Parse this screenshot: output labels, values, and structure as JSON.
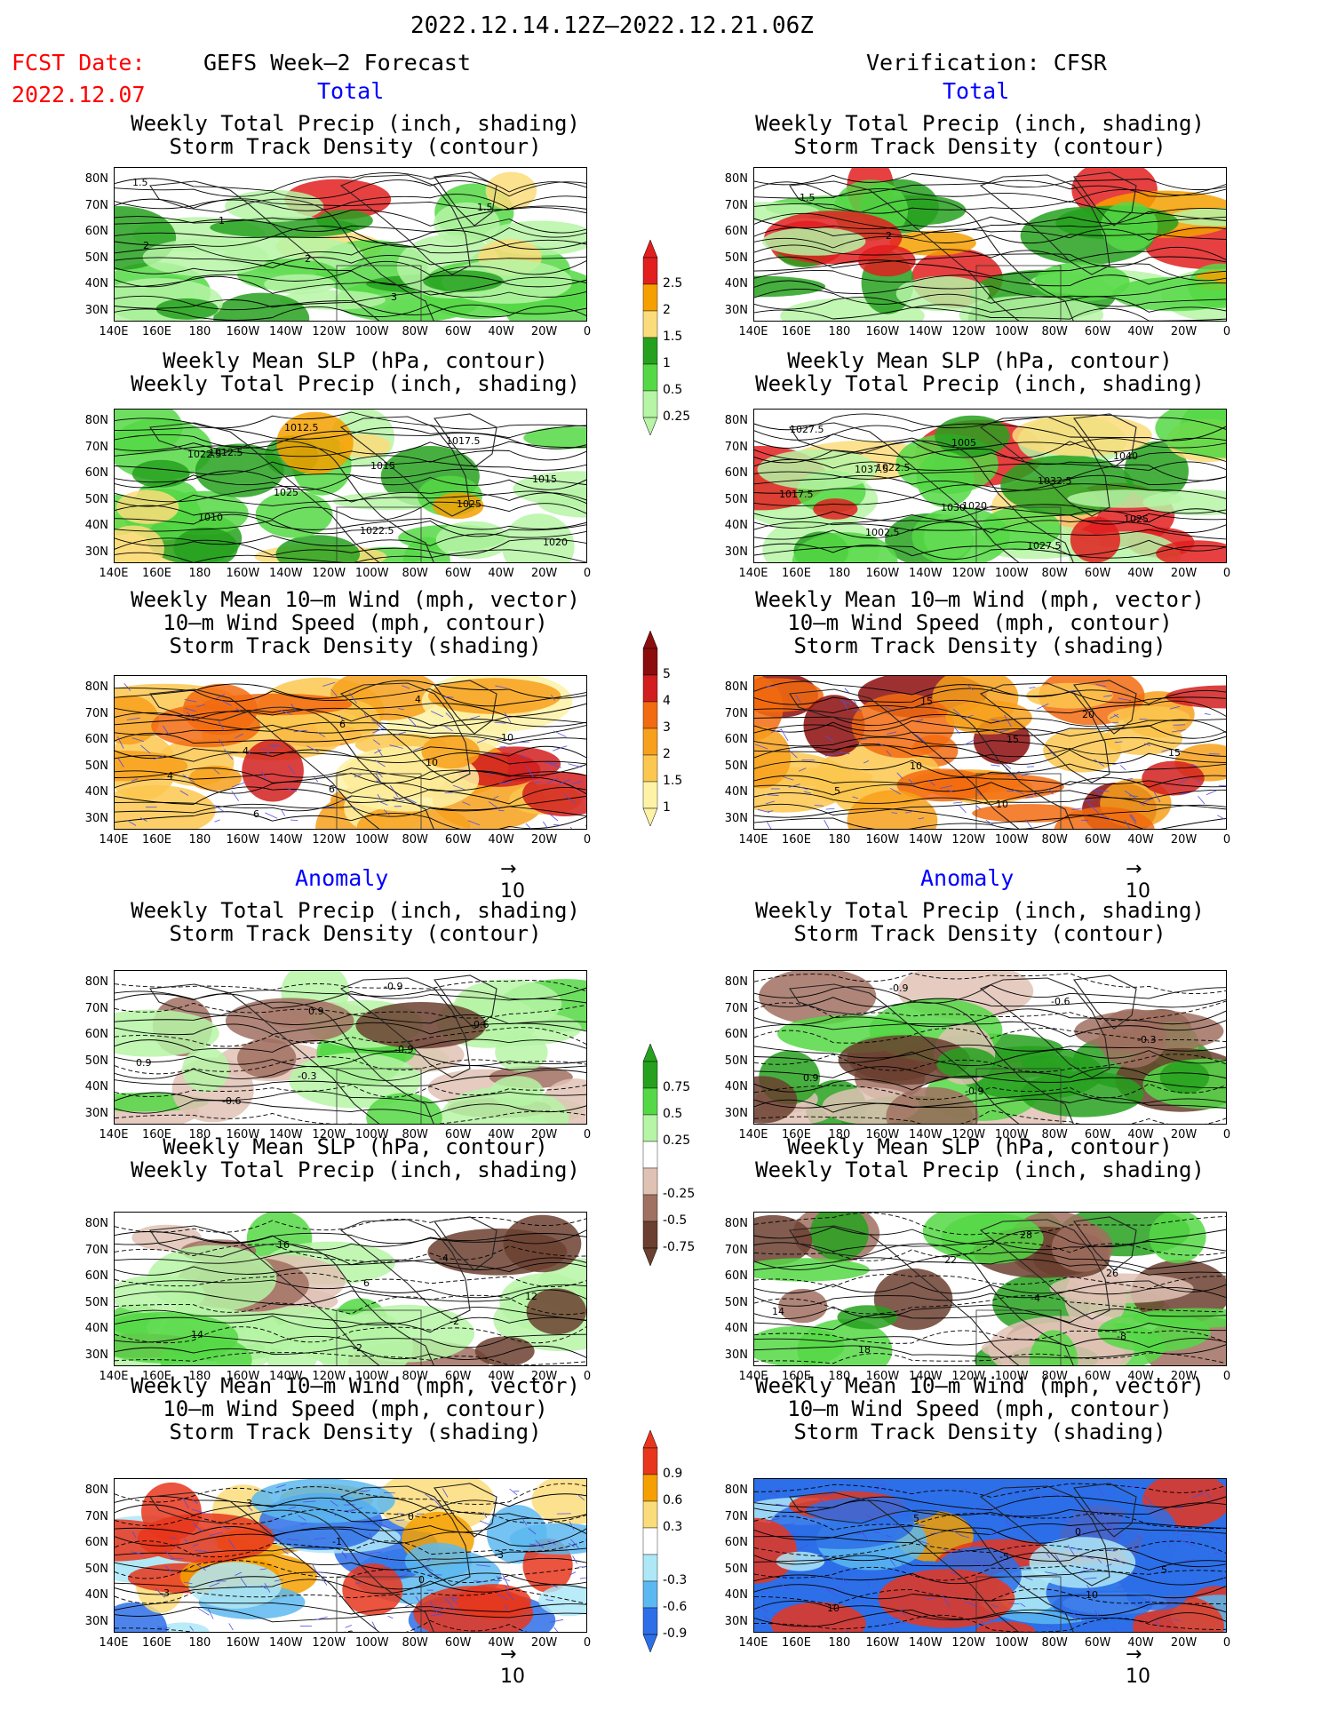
{
  "header": {
    "period": "2022.12.14.12Z—2022.12.21.06Z",
    "fcst_label": "FCST Date:",
    "fcst_date": "2022.12.07",
    "left_title": "GEFS Week—2 Forecast",
    "right_title": "Verification: CFSR",
    "total_label": "Total",
    "anomaly_label": "Anomaly"
  },
  "panel_titles": {
    "precip_track": "Weekly Total Precip (inch, shading)\nStorm Track Density (contour)",
    "slp_precip": "Weekly Mean SLP (hPa, contour)\nWeekly Total Precip (inch, shading)",
    "wind_track": "Weekly Mean 10—m Wind (mph, vector)\n10—m Wind Speed (mph, contour)\nStorm Track Density (shading)"
  },
  "axes": {
    "lat_ticks": [
      "80N",
      "70N",
      "60N",
      "50N",
      "40N",
      "30N"
    ],
    "lon_ticks": [
      "140E",
      "160E",
      "180",
      "160W",
      "140W",
      "120W",
      "100W",
      "80W",
      "60W",
      "40W",
      "20W",
      "0"
    ]
  },
  "vector_ref": {
    "label": "10"
  },
  "colorbars": {
    "precip_total": {
      "labels": [
        "2.5",
        "2",
        "1.5",
        "1",
        "0.5",
        "0.25"
      ],
      "colors": [
        "#e21f1f",
        "#f5a000",
        "#fbdc7a",
        "#26a11e",
        "#55d845",
        "#b6f4a6"
      ]
    },
    "storm_total": {
      "labels": [
        "5",
        "4",
        "3",
        "2",
        "1.5",
        "1"
      ],
      "colors": [
        "#8c0d0d",
        "#d21e1e",
        "#f26b10",
        "#f7a01b",
        "#fbc74f",
        "#fdf2a6"
      ]
    },
    "precip_anom": {
      "labels": [
        "0.75",
        "0.5",
        "0.25",
        "-0.25",
        "-0.5",
        "-0.75"
      ],
      "colors": [
        "#26a11e",
        "#55d845",
        "#b6f4a6",
        "#ffffff",
        "#e0c2b5",
        "#a07060",
        "#6b4030"
      ]
    },
    "wind_anom": {
      "labels": [
        "0.9",
        "0.6",
        "0.3",
        "-0.3",
        "-0.6",
        "-0.9"
      ],
      "colors": [
        "#e8361c",
        "#f5a000",
        "#fbdc7a",
        "#ffffff",
        "#aee8f7",
        "#5cb8f0",
        "#2d6fe8"
      ]
    }
  },
  "panels": [
    {
      "id": "fc-total-precip",
      "labels": [
        "1.5",
        "1",
        "2",
        "3",
        "1.5",
        "2"
      ],
      "scheme": "precip"
    },
    {
      "id": "vf-total-precip",
      "labels": [
        "1.5",
        "2"
      ],
      "scheme": "precip_heavy"
    },
    {
      "id": "fc-total-slp",
      "labels": [
        "1022.5",
        "1025",
        "1022.5",
        "1017.5",
        "1015",
        "1010",
        "1012.5",
        "1015",
        "1025",
        "1020",
        "1012.5"
      ],
      "scheme": "precip"
    },
    {
      "id": "vf-total-slp",
      "labels": [
        "1037.5",
        "1030",
        "1027.5",
        "1040",
        "1017.5",
        "1002.5",
        "1005",
        "1032.5",
        "1025",
        "1027.5",
        "1022.5",
        "1020"
      ],
      "scheme": "precip_heavy"
    },
    {
      "id": "fc-total-wind",
      "labels": [
        "4",
        "6",
        "4",
        "10",
        "4",
        "6",
        "6",
        "10"
      ],
      "scheme": "storm"
    },
    {
      "id": "vf-total-wind",
      "labels": [
        "10",
        "10",
        "20",
        "15",
        "5",
        "15",
        "15"
      ],
      "scheme": "storm_verif"
    },
    {
      "id": "fc-anom-precip",
      "labels": [
        "-0.3",
        "-0.9",
        "-0.6",
        "0.9",
        "-0.6",
        "0.9",
        "-0.9"
      ],
      "scheme": "anom_precip"
    },
    {
      "id": "vf-anom-precip",
      "labels": [
        "-0.9",
        "-0.6",
        "-0.3",
        "0.9",
        "-0.9"
      ],
      "scheme": "anom_precip_v"
    },
    {
      "id": "fc-anom-slp",
      "labels": [
        "-2",
        "-4",
        "12",
        "14",
        "16",
        "6",
        "-2"
      ],
      "scheme": "anom_precip"
    },
    {
      "id": "vf-anom-slp",
      "labels": [
        "28",
        "26",
        "14",
        "18",
        "22",
        "-4",
        "-8"
      ],
      "scheme": "anom_precip_v"
    },
    {
      "id": "fc-anom-wind",
      "labels": [
        "0",
        "-3",
        "-3",
        "3",
        "-1",
        "0"
      ],
      "scheme": "anom_wind"
    },
    {
      "id": "vf-anom-wind",
      "labels": [
        "0",
        "5",
        "10",
        "5",
        "-5",
        "10"
      ],
      "scheme": "anom_wind_v"
    }
  ]
}
